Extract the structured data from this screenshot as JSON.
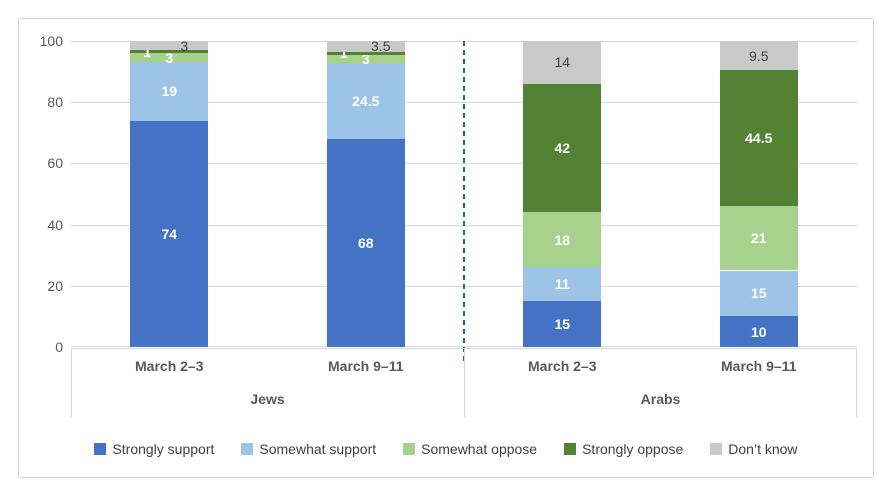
{
  "chart_data": {
    "type": "bar",
    "subtype": "stacked-column-100",
    "title": "",
    "xlabel": "",
    "ylabel": "",
    "ylim": [
      0,
      100
    ],
    "y_ticks": [
      0,
      20,
      40,
      60,
      80,
      100
    ],
    "grid": true,
    "legend_position": "bottom",
    "series": [
      {
        "name": "Strongly support",
        "color": "#4472C4",
        "label_color": "#FFFFFF"
      },
      {
        "name": "Somewhat support",
        "color": "#9DC3E6",
        "label_color": "#FFFFFF"
      },
      {
        "name": "Somewhat oppose",
        "color": "#A9D18E",
        "label_color": "#FFFFFF"
      },
      {
        "name": "Strongly oppose",
        "color": "#548235",
        "label_color": "#FFFFFF"
      },
      {
        "name": "Don’t know",
        "color": "#C9C9C9",
        "label_color": "#404040"
      }
    ],
    "groups": [
      {
        "label": "Jews",
        "categories": [
          "March 2–3",
          "March 9–11"
        ],
        "values": [
          [
            74,
            19,
            3,
            1,
            3
          ],
          [
            68,
            24.5,
            3,
            1,
            3.5
          ]
        ]
      },
      {
        "label": "Arabs",
        "categories": [
          "March 2–3",
          "March 9–11"
        ],
        "values": [
          [
            15,
            11,
            18,
            42,
            14
          ],
          [
            10,
            15,
            21,
            44.5,
            9.5
          ]
        ]
      }
    ],
    "separator": {
      "type": "dashed-vertical-line",
      "color": "#1F6A7D"
    }
  },
  "style": {
    "gridline_color": "#D9D9D9",
    "axis_text_color": "#595959",
    "legend_text_color": "#404040",
    "figure_border_color": "#D4D4D4"
  }
}
